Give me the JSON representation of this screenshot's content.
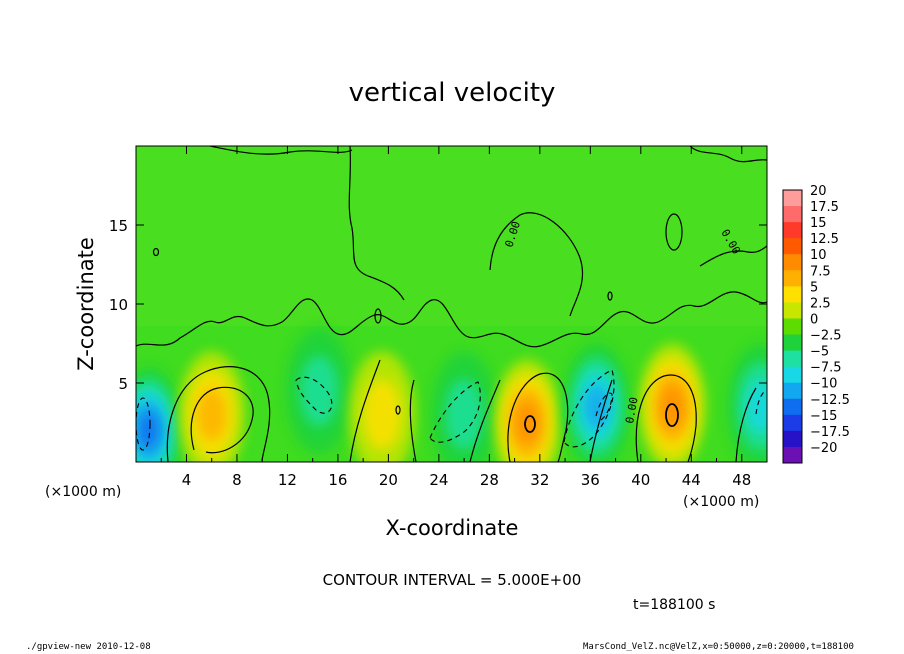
{
  "chart_data": {
    "type": "heatmap",
    "title": "vertical velocity",
    "xlabel": "X-coordinate",
    "ylabel": "Z-coordinate",
    "x_unit": "(×1000 m)",
    "z_unit": "(×1000 m)",
    "xlim": [
      0,
      50
    ],
    "ylim": [
      0,
      20
    ],
    "x_ticks": [
      "4",
      "8",
      "12",
      "16",
      "20",
      "24",
      "28",
      "32",
      "36",
      "40",
      "44",
      "48"
    ],
    "y_ticks": [
      "5",
      "10",
      "15"
    ],
    "contour_interval_text": "CONTOUR INTERVAL = 5.000E+00",
    "time_text": "t=188100 s",
    "contour_labels": [
      "0.00",
      "0.00",
      "0.00"
    ],
    "colorbar": {
      "labels": [
        "20",
        "17.5",
        "15",
        "12.5",
        "10",
        "7.5",
        "5",
        "2.5",
        "0",
        "−2.5",
        "−5",
        "−7.5",
        "−10",
        "−12.5",
        "−15",
        "−17.5",
        "−20"
      ],
      "colors": [
        "#ff9d9d",
        "#ff6b6b",
        "#ff3a2a",
        "#ff5a00",
        "#ff8c00",
        "#ffb000",
        "#ffe000",
        "#c8e600",
        "#5ddc00",
        "#1fd23c",
        "#1ee0a0",
        "#19d8e6",
        "#12a8f0",
        "#0f6ef0",
        "#1b3ce6",
        "#2812c8",
        "#6a10b4"
      ]
    },
    "features": [
      {
        "x": 1.0,
        "z": 2.0,
        "w": -12
      },
      {
        "x": 6.0,
        "z": 3.0,
        "w": 8
      },
      {
        "x": 14.5,
        "z": 4.5,
        "w": -6
      },
      {
        "x": 19.5,
        "z": 3.0,
        "w": 4
      },
      {
        "x": 26.0,
        "z": 3.0,
        "w": -5
      },
      {
        "x": 31.0,
        "z": 2.5,
        "w": 11
      },
      {
        "x": 36.5,
        "z": 3.5,
        "w": -11
      },
      {
        "x": 42.5,
        "z": 3.5,
        "w": 11
      },
      {
        "x": 49.5,
        "z": 3.5,
        "w": -7
      }
    ]
  },
  "footer": {
    "left": "./gpview-new  2010-12-08",
    "right": "MarsCond_VelZ.nc@VelZ,x=0:50000,z=0:20000,t=188100"
  }
}
